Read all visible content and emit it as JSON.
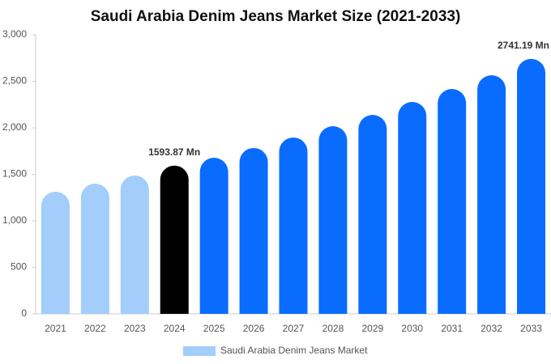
{
  "chart_data": {
    "type": "bar",
    "title": "Saudi Arabia Denim Jeans Market Size (2021-2033)",
    "categories": [
      "2021",
      "2022",
      "2023",
      "2024",
      "2025",
      "2026",
      "2027",
      "2028",
      "2029",
      "2030",
      "2031",
      "2032",
      "2033"
    ],
    "series": [
      {
        "name": "Saudi Arabia Denim Jeans Market",
        "color": "#a3cdfb",
        "colors": [
          "#a3cdfb",
          "#a3cdfb",
          "#a3cdfb",
          "#000000",
          "#0a6cff",
          "#0a6cff",
          "#0a6cff",
          "#0a6cff",
          "#0a6cff",
          "#0a6cff",
          "#0a6cff",
          "#0a6cff",
          "#0a6cff"
        ],
        "values": [
          1313,
          1400,
          1487,
          1593.87,
          1678,
          1783,
          1896,
          2017,
          2139,
          2278,
          2417,
          2565,
          2741.19
        ],
        "value_labels": [
          null,
          null,
          null,
          "1593.87 Mn",
          null,
          null,
          null,
          null,
          null,
          null,
          null,
          null,
          "2741.19 Mn"
        ]
      }
    ],
    "ylim": [
      0,
      3000
    ],
    "yticks": [
      0,
      500,
      {
        "value": 1000,
        "label": "1,000"
      },
      {
        "value": 1500,
        "label": "1,500"
      },
      {
        "value": 2000,
        "label": "2,000"
      },
      {
        "value": 2500,
        "label": "2,500"
      },
      {
        "value": 3000,
        "label": "3,000"
      }
    ],
    "grid": false
  }
}
